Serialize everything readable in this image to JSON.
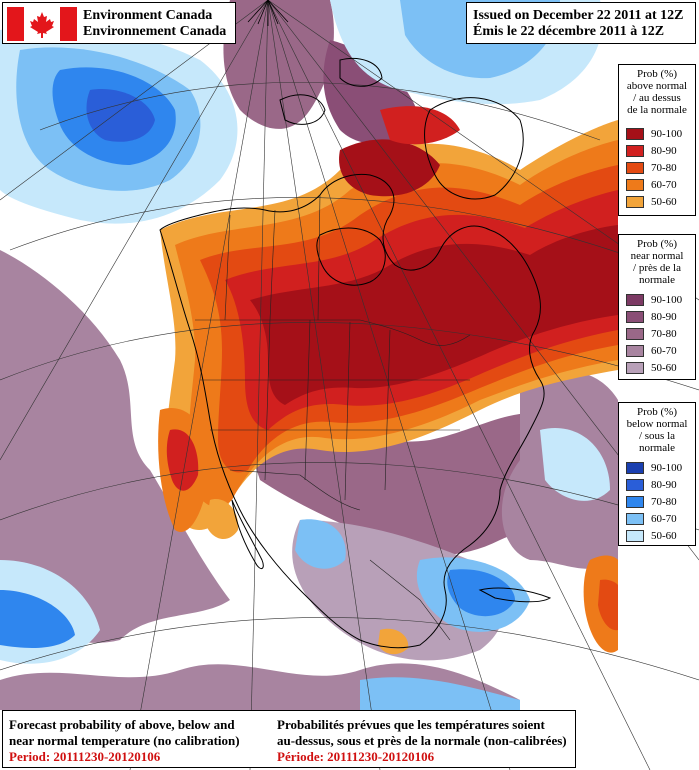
{
  "header": {
    "org_en": "Environment Canada",
    "org_fr": "Environnement Canada"
  },
  "issued": {
    "line_en": "Issued on December 22 2011 at 12Z",
    "line_fr": "Émis le 22 décembre 2011 à 12Z"
  },
  "legends": {
    "above": {
      "title": [
        "Prob (%)",
        "above normal",
        "/ au dessus",
        "de la normale"
      ],
      "items": [
        {
          "label": "90-100",
          "color": "#a51018"
        },
        {
          "label": "80-90",
          "color": "#d1201f"
        },
        {
          "label": "70-80",
          "color": "#e34a12"
        },
        {
          "label": "60-70",
          "color": "#ee7a1a"
        },
        {
          "label": "50-60",
          "color": "#f2a43a"
        }
      ]
    },
    "near": {
      "title": [
        "Prob (%)",
        "near normal",
        "/ près de la",
        "normale"
      ],
      "items": [
        {
          "label": "90-100",
          "color": "#7c3a64"
        },
        {
          "label": "80-90",
          "color": "#8a4e76"
        },
        {
          "label": "70-80",
          "color": "#9a6888"
        },
        {
          "label": "60-70",
          "color": "#a884a0"
        },
        {
          "label": "50-60",
          "color": "#b8a0b8"
        }
      ]
    },
    "below": {
      "title": [
        "Prob (%)",
        "below normal",
        "/ sous la normale"
      ],
      "items": [
        {
          "label": "90-100",
          "color": "#1a3fb0"
        },
        {
          "label": "80-90",
          "color": "#2a5ed8"
        },
        {
          "label": "70-80",
          "color": "#2f86ee"
        },
        {
          "label": "60-70",
          "color": "#7cc0f5"
        },
        {
          "label": "50-60",
          "color": "#c6e8fb"
        }
      ]
    }
  },
  "footer": {
    "en_line1": "Forecast probability of above, below and",
    "en_line2": "near normal temperature (no calibration)",
    "en_period": "Period: 20111230-20120106",
    "fr_line1": "Probabilités prévues que les températures soient",
    "fr_line2": "au-dessus, sous et près de la normale (non-calibrées)",
    "fr_period": "Période: 20111230-20120106"
  }
}
